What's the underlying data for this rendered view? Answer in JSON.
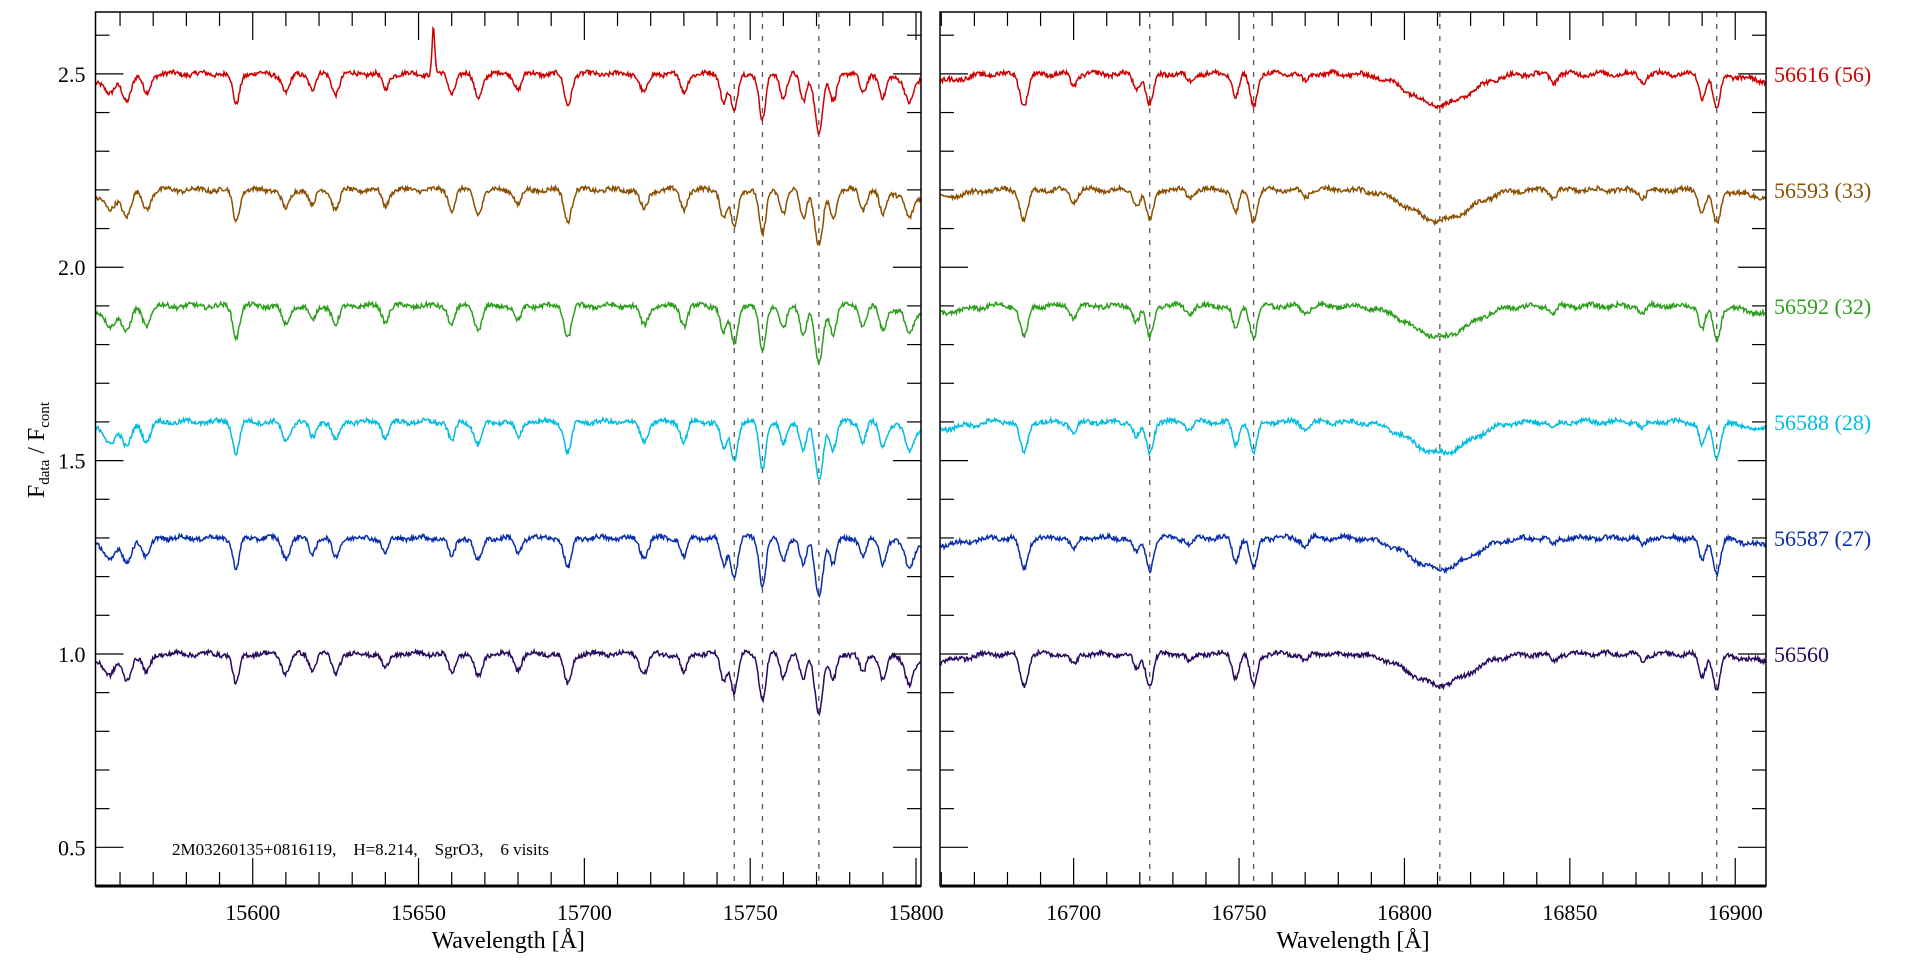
{
  "chart_data": {
    "type": "line",
    "ylabel_main": "F",
    "ylabel_sub1": "data",
    "ylabel_sep": " / F",
    "ylabel_sub2": "cont",
    "ylim": [
      0.4,
      2.66
    ],
    "yticks": [
      0.5,
      1.0,
      1.5,
      2.0,
      2.5
    ],
    "ytick_labels": [
      "0.5",
      "1.0",
      "1.5",
      "2.0",
      "2.5"
    ],
    "annotation": "2M03260135+0816119,    H=8.214,    SgrO3,    6 visits",
    "panels": [
      {
        "xlabel": "Wavelength [Å]",
        "xlim": [
          15552.6,
          15801.5
        ],
        "xticks": [
          15600,
          15650,
          15700,
          15750,
          15800
        ],
        "xtick_labels": [
          "15600",
          "15650",
          "15700",
          "15750",
          "15800"
        ],
        "marker_lines": [
          15745.2,
          15753.7,
          15770.7
        ],
        "absorption_lines": [
          [
            15557,
            0.04,
            1.5
          ],
          [
            15562,
            0.06,
            1.3
          ],
          [
            15568,
            0.05,
            1.2
          ],
          [
            15595,
            0.08,
            1.0
          ],
          [
            15610,
            0.05,
            1.2
          ],
          [
            15618,
            0.04,
            1.0
          ],
          [
            15625,
            0.05,
            1.1
          ],
          [
            15640,
            0.04,
            1.0
          ],
          [
            15660,
            0.05,
            1.0
          ],
          [
            15668,
            0.06,
            1.2
          ],
          [
            15680,
            0.04,
            1.0
          ],
          [
            15695,
            0.08,
            1.1
          ],
          [
            15718,
            0.05,
            1.2
          ],
          [
            15730,
            0.05,
            1.0
          ],
          [
            15742,
            0.07,
            1.0
          ],
          [
            15745.2,
            0.1,
            1.0
          ],
          [
            15753.7,
            0.12,
            1.0
          ],
          [
            15760,
            0.06,
            1.0
          ],
          [
            15766,
            0.07,
            1.0
          ],
          [
            15770.7,
            0.15,
            1.2
          ],
          [
            15775,
            0.07,
            1.0
          ],
          [
            15784,
            0.05,
            1.0
          ],
          [
            15790,
            0.06,
            1.0
          ],
          [
            15798,
            0.06,
            1.2
          ]
        ],
        "emission_lines": [
          [
            15654.5,
            0.12,
            0.4
          ]
        ]
      },
      {
        "xlabel": "Wavelength [Å]",
        "xlim": [
          16659.6,
          16909.3
        ],
        "xticks": [
          16700,
          16750,
          16800,
          16850,
          16900
        ],
        "xtick_labels": [
          "16700",
          "16750",
          "16800",
          "16850",
          "16900"
        ],
        "marker_lines": [
          16723.0,
          16754.4,
          16810.7,
          16894.4
        ],
        "absorption_lines": [
          [
            16685,
            0.08,
            1.2
          ],
          [
            16700,
            0.03,
            1.0
          ],
          [
            16719,
            0.04,
            1.0
          ],
          [
            16723,
            0.08,
            1.1
          ],
          [
            16735,
            0.02,
            1.0
          ],
          [
            16749,
            0.06,
            1.0
          ],
          [
            16754.4,
            0.08,
            1.1
          ],
          [
            16770,
            0.02,
            1.0
          ],
          [
            16810.7,
            0.08,
            9.0
          ],
          [
            16845,
            0.02,
            1.0
          ],
          [
            16872,
            0.02,
            1.0
          ],
          [
            16890,
            0.06,
            1.0
          ],
          [
            16894.4,
            0.09,
            1.1
          ]
        ],
        "emission_lines": []
      }
    ],
    "series": [
      {
        "name": "56616 (56)",
        "offset": 2.5,
        "color": "#cc0000"
      },
      {
        "name": "56593 (33)",
        "offset": 2.2,
        "color": "#8b5000"
      },
      {
        "name": "56592 (32)",
        "offset": 1.9,
        "color": "#2e9e1e"
      },
      {
        "name": "56588 (28)",
        "offset": 1.6,
        "color": "#00bce0"
      },
      {
        "name": "56587 (27)",
        "offset": 1.3,
        "color": "#0a2ea8"
      },
      {
        "name": "56560",
        "offset": 1.0,
        "color": "#2a0a5e"
      }
    ]
  }
}
